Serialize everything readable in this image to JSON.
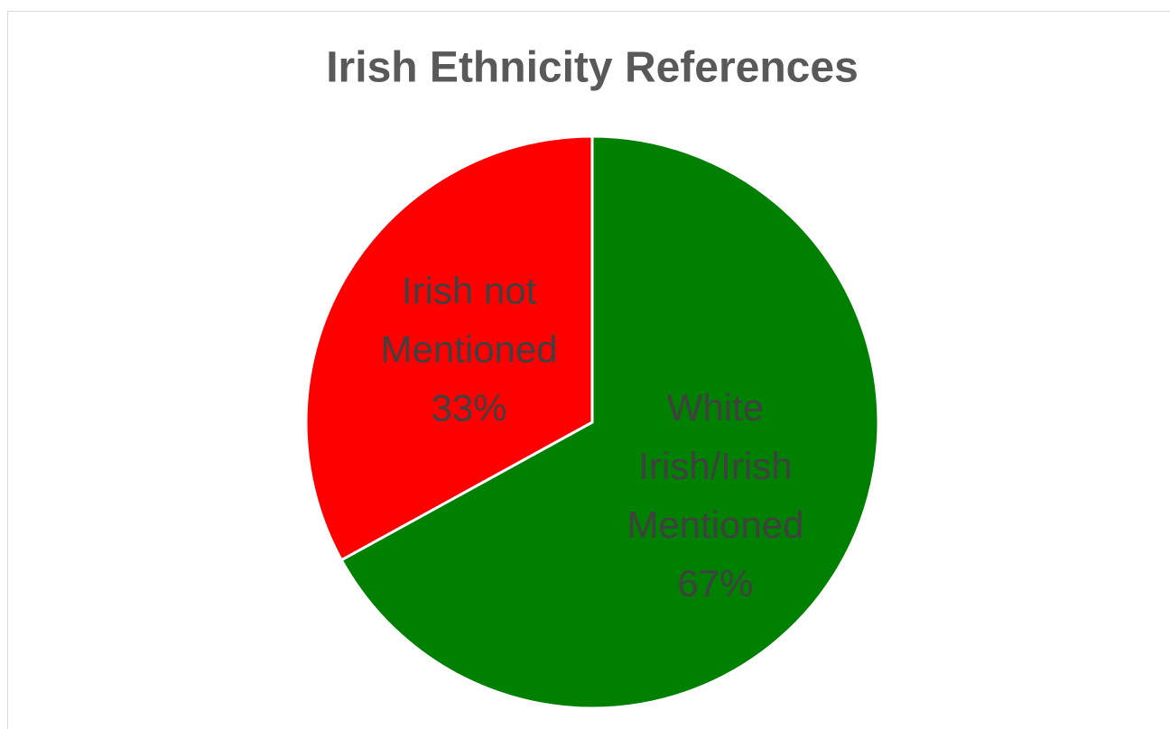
{
  "chart_data": {
    "type": "pie",
    "title": "Irish Ethnicity References",
    "categories": [
      "White Irish/Irish Mentioned",
      "Irish not Mentioned"
    ],
    "values": [
      67,
      33
    ],
    "value_labels": [
      "67%",
      "33%"
    ],
    "colors": [
      "#008000",
      "#ff0000"
    ]
  }
}
